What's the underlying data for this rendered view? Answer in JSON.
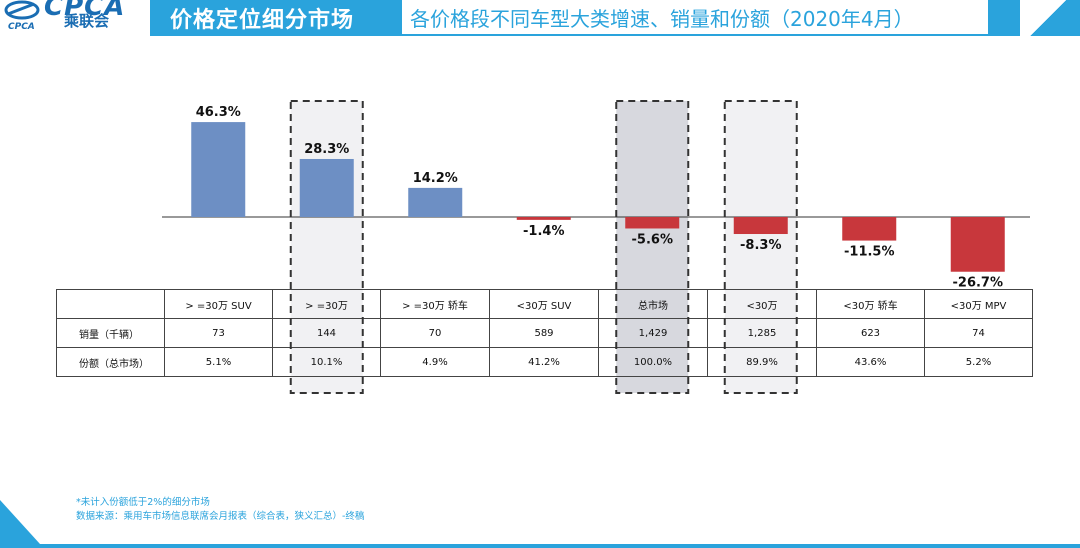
{
  "header": {
    "logo_text": "CPCA",
    "logo_cn": "乘联会",
    "logo_sub": "CPCA",
    "title_main": "价格定位细分市场",
    "title_sub": "各价格段不同车型大类增速、销量和份额（2020年4月）"
  },
  "chart_data": {
    "type": "bar",
    "categories": [
      ">=30万 SUV",
      ">=30万",
      ">=30万 轿车",
      "<30万 SUV",
      "总市场",
      "<30万",
      "<30万 轿车",
      "<30万 MPV"
    ],
    "series": [
      {
        "values": [
          46.3,
          28.3,
          14.2,
          -1.4,
          -5.6,
          -8.3,
          -11.5,
          -26.7
        ]
      }
    ],
    "data_labels": [
      "46.3%",
      "28.3%",
      "14.2%",
      "-1.4%",
      "-5.6%",
      "-8.3%",
      "-11.5%",
      "-26.7%"
    ],
    "ylim": [
      -30,
      50
    ],
    "colors": {
      "positive": "#6d8fc4",
      "negative": "#c8373c"
    },
    "highlighted_categories": [
      ">=30万",
      "总市场",
      "<30万"
    ],
    "grid": false
  },
  "table": {
    "header_cells": [
      "",
      "> =30万 SUV",
      "> =30万",
      "> =30万 轿车",
      "<30万 SUV",
      "总市场",
      "<30万",
      "<30万 轿车",
      "<30万 MPV"
    ],
    "rows": [
      {
        "label": "销量（千辆）",
        "values": [
          "73",
          "144",
          "70",
          "589",
          "1,429",
          "1,285",
          "623",
          "74"
        ]
      },
      {
        "label": "份额（总市场）",
        "values": [
          "5.1%",
          "10.1%",
          "4.9%",
          "41.2%",
          "100.0%",
          "89.9%",
          "43.6%",
          "5.2%"
        ]
      }
    ]
  },
  "footnotes": {
    "line1": "*未计入份额低于2%的细分市场",
    "line2": "数据来源：乘用车市场信息联席会月报表（综合表，狭义汇总）-终稿"
  }
}
